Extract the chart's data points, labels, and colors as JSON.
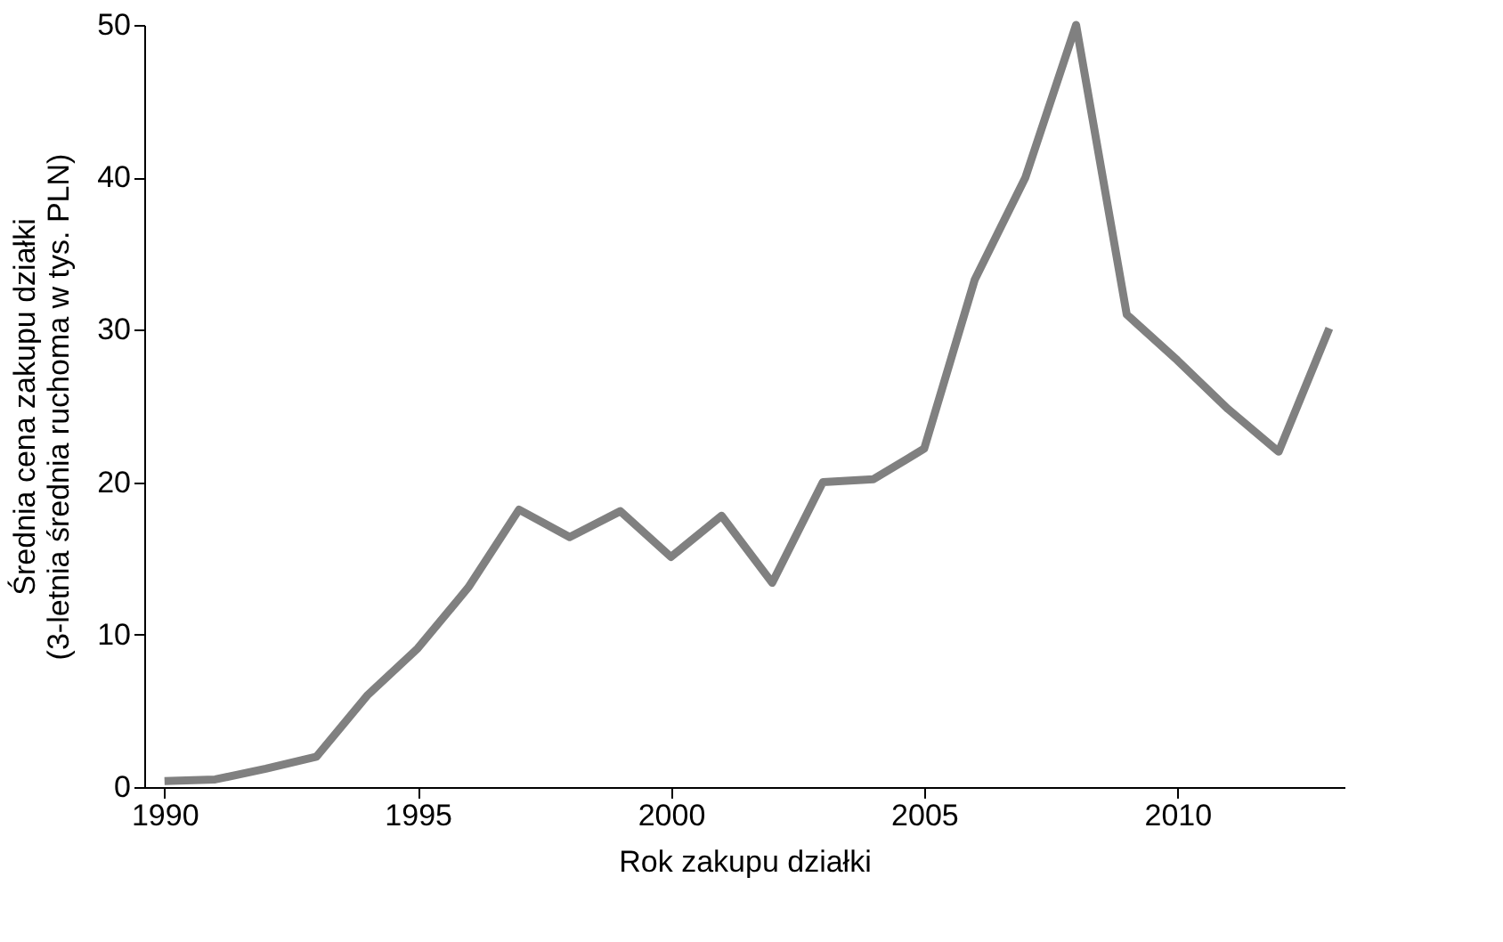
{
  "chart_data": {
    "type": "line",
    "xlabel": "Rok zakupu działki",
    "ylabel": "Średnia cena zakupu działki\n(3-letnia średnia ruchoma w tys. PLN)",
    "x": [
      1990,
      1991,
      1992,
      1993,
      1994,
      1995,
      1996,
      1997,
      1998,
      1999,
      2000,
      2001,
      2002,
      2003,
      2004,
      2005,
      2006,
      2007,
      2008,
      2009,
      2010,
      2011,
      2012,
      2013
    ],
    "series": [
      {
        "color": "#808080",
        "values": [
          0.4,
          0.5,
          1.2,
          2.0,
          6.0,
          9.1,
          13.1,
          18.2,
          16.4,
          18.1,
          15.1,
          17.8,
          13.4,
          20.0,
          20.2,
          22.2,
          33.3,
          40.0,
          50.0,
          31.0,
          28.0,
          24.8,
          22.0,
          30.1
        ]
      }
    ],
    "xlim": [
      1989.6,
      2013.3
    ],
    "xticks": [
      1990,
      1995,
      2000,
      2005,
      2010
    ],
    "ylim": [
      0,
      50
    ],
    "yticks": [
      0,
      10,
      20,
      30,
      40,
      50
    ],
    "grid": false,
    "marker": "none",
    "line_style": "solid"
  }
}
